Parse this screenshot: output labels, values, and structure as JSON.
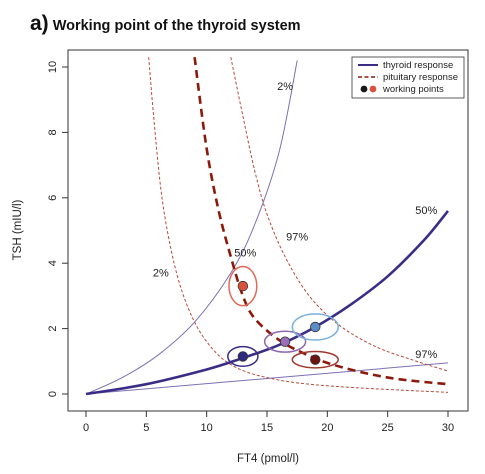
{
  "panel": {
    "letter": "a)",
    "title": "Working point of the thyroid system"
  },
  "colors": {
    "thyroid": "#3a2d86",
    "thyroid_light": "#7e6fb5",
    "pituitary": "#8b1a0c",
    "pituitary_light": "#b84a3a"
  },
  "chart_data": {
    "type": "line",
    "xlabel": "FT4 (pmol/l)",
    "ylabel": "TSH (mIU/l)",
    "xlim": [
      0,
      30
    ],
    "ylim": [
      0,
      10
    ],
    "x_ticks": [
      "0",
      "5",
      "10",
      "15",
      "20",
      "25",
      "30"
    ],
    "y_ticks": [
      "0",
      "2",
      "4",
      "6",
      "8",
      "10"
    ],
    "legend": {
      "position": "top-right",
      "entries": [
        "thyroid response",
        "pituitary response",
        "working points"
      ]
    },
    "series": [
      {
        "name": "thyroid response",
        "style": "solid-bold",
        "color": "#3a2d86",
        "points": [
          [
            0,
            0
          ],
          [
            5,
            0.3
          ],
          [
            10,
            0.75
          ],
          [
            13,
            1.1
          ],
          [
            16,
            1.5
          ],
          [
            19,
            2.05
          ],
          [
            22,
            2.75
          ],
          [
            25,
            3.6
          ],
          [
            28,
            4.7
          ],
          [
            30,
            5.6
          ]
        ]
      },
      {
        "name": "pituitary response",
        "style": "dashed-bold",
        "color": "#8b1a0c",
        "points": [
          [
            9,
            10.3
          ],
          [
            10,
            7.5
          ],
          [
            11,
            5.6
          ],
          [
            12,
            4.2
          ],
          [
            13,
            3.0
          ],
          [
            14,
            2.3
          ],
          [
            16,
            1.65
          ],
          [
            18,
            1.25
          ],
          [
            20,
            0.95
          ],
          [
            23,
            0.65
          ],
          [
            26,
            0.45
          ],
          [
            30,
            0.3
          ]
        ]
      }
    ],
    "percentile_curves": [
      {
        "label": "2%",
        "series": "thyroid response",
        "color": "#7e6fb5",
        "points": [
          [
            0,
            0
          ],
          [
            3,
            0.5
          ],
          [
            6,
            1.2
          ],
          [
            9,
            2.2
          ],
          [
            12,
            3.7
          ],
          [
            14,
            5.2
          ],
          [
            16,
            7.4
          ],
          [
            17.5,
            10.2
          ]
        ]
      },
      {
        "label": "97%",
        "series": "thyroid response",
        "color": "#7e6fb5",
        "points": [
          [
            0,
            0
          ],
          [
            30,
            0.95
          ]
        ]
      },
      {
        "label": "2%",
        "series": "pituitary response",
        "color": "#b84a3a",
        "points": [
          [
            5.2,
            10.3
          ],
          [
            5.6,
            8.5
          ],
          [
            6.3,
            6.0
          ],
          [
            7.3,
            4.0
          ],
          [
            8.5,
            2.6
          ],
          [
            10,
            1.6
          ],
          [
            12,
            0.9
          ],
          [
            15,
            0.5
          ],
          [
            20,
            0.25
          ],
          [
            30,
            0.05
          ]
        ]
      },
      {
        "label": "97%",
        "series": "pituitary response",
        "color": "#b84a3a",
        "points": [
          [
            12,
            10.3
          ],
          [
            13,
            8.5
          ],
          [
            14,
            6.8
          ],
          [
            15,
            5.5
          ],
          [
            16.5,
            4.2
          ],
          [
            18.5,
            3.0
          ],
          [
            21,
            2.1
          ],
          [
            24,
            1.45
          ],
          [
            27,
            1.05
          ],
          [
            30,
            0.7
          ]
        ]
      }
    ],
    "curve_labels": [
      {
        "text": "2%",
        "x": 16.5,
        "y": 9.3
      },
      {
        "text": "50%",
        "x": 28.2,
        "y": 5.5
      },
      {
        "text": "97%",
        "x": 28.2,
        "y": 1.1
      },
      {
        "text": "50%",
        "x": 13.2,
        "y": 4.2
      },
      {
        "text": "97%",
        "x": 17.5,
        "y": 4.7
      },
      {
        "text": "2%",
        "x": 6.2,
        "y": 3.6
      }
    ],
    "working_points": [
      {
        "x": 13.0,
        "y": 1.15,
        "fill": "#2f2a80",
        "ring": "#3a2d86",
        "rx": 1.25,
        "ry": 0.3
      },
      {
        "x": 16.5,
        "y": 1.6,
        "fill": "#9a6fb8",
        "ring": "#8e67b0",
        "rx": 1.7,
        "ry": 0.32
      },
      {
        "x": 19.0,
        "y": 2.05,
        "fill": "#5a8cc8",
        "ring": "#7ab0dc",
        "rx": 1.9,
        "ry": 0.4
      },
      {
        "x": 19.0,
        "y": 1.05,
        "fill": "#6b1410",
        "ring": "#a03a30",
        "rx": 1.9,
        "ry": 0.25
      },
      {
        "x": 13.0,
        "y": 3.3,
        "fill": "#d9533c",
        "ring": "#e06a5a",
        "rx": 1.15,
        "ry": 0.6
      }
    ]
  }
}
